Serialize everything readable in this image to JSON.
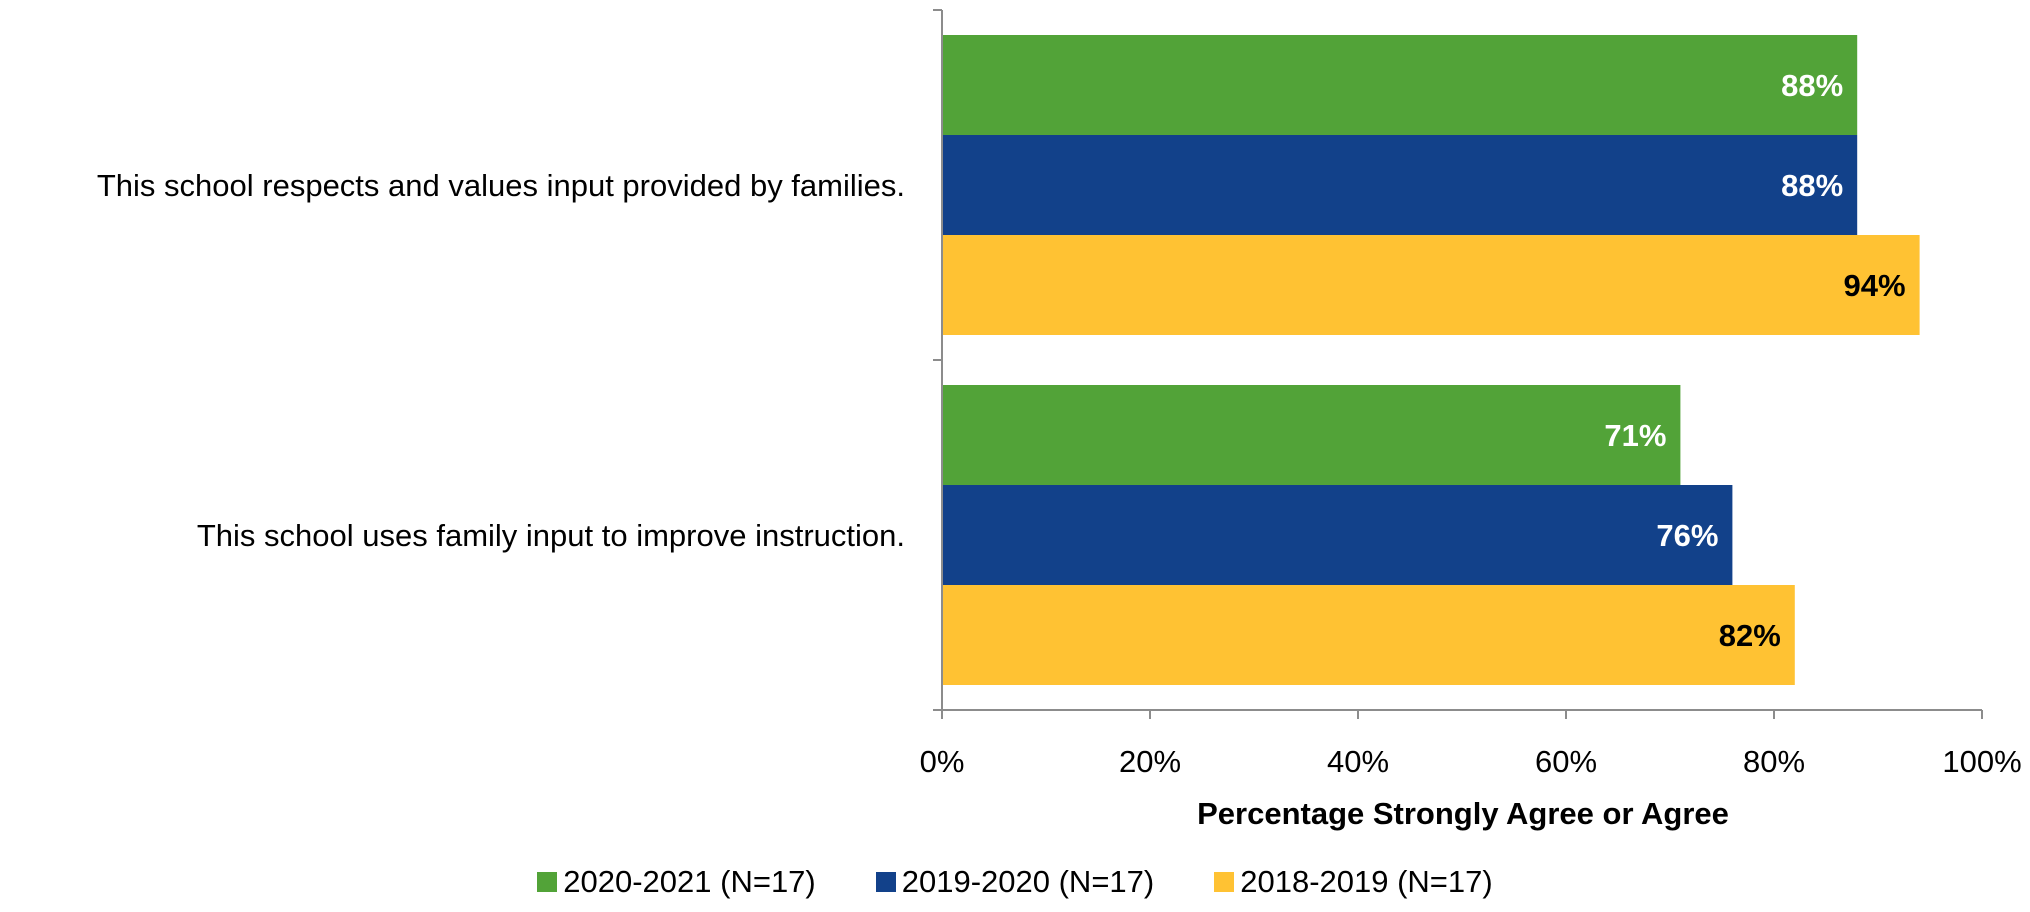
{
  "chart_data": {
    "type": "bar",
    "orientation": "horizontal",
    "categories": [
      "This school respects and values input provided by families.",
      "This school uses family input to improve instruction."
    ],
    "series": [
      {
        "name": "2020-2021 (N=17)",
        "color": "#52A338",
        "label_color": "#FFFFFF",
        "values": [
          88,
          71
        ],
        "labels": [
          "88%",
          "71%"
        ]
      },
      {
        "name": "2019-2020 (N=17)",
        "color": "#12418A",
        "label_color": "#FFFFFF",
        "values": [
          88,
          76
        ],
        "labels": [
          "88%",
          "76%"
        ]
      },
      {
        "name": "2018-2019 (N=17)",
        "color": "#FFC233",
        "label_color": "#000000",
        "values": [
          94,
          82
        ],
        "labels": [
          "94%",
          "82%"
        ]
      }
    ],
    "xlabel": "Percentage Strongly Agree or Agree",
    "ylabel": "",
    "xlim": [
      0,
      100
    ],
    "x_ticks": [
      "0%",
      "20%",
      "40%",
      "60%",
      "80%",
      "100%"
    ],
    "grid": false,
    "legend_position": "bottom"
  }
}
